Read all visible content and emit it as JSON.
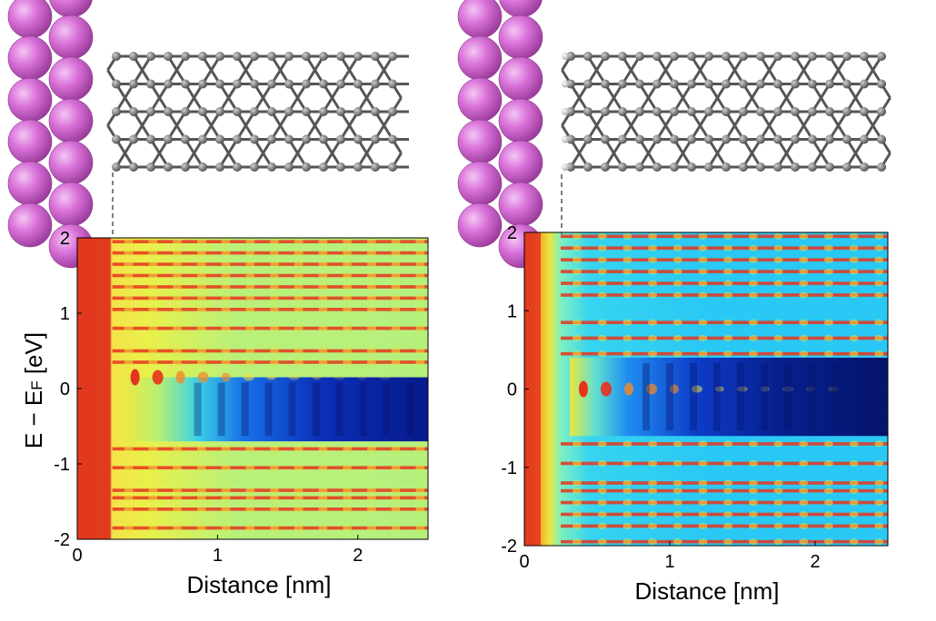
{
  "chart_data": [
    {
      "type": "heatmap",
      "panel": "left",
      "xlabel": "Distance [nm]",
      "ylabel": "E − E",
      "ylabel_sub": "F",
      "ylabel_unit": " [eV]",
      "xlim": [
        0,
        2.5
      ],
      "ylim": [
        -2,
        2
      ],
      "x_ticks": [
        0,
        1,
        2
      ],
      "y_ticks": [
        -2,
        -1,
        0,
        1,
        2
      ],
      "x_tick_labels": [
        "0",
        "1",
        "2"
      ],
      "y_tick_labels": [
        "-2",
        "-1",
        "0",
        "1",
        "2"
      ],
      "interface_x": 0.25,
      "gap_range": [
        -0.7,
        0.15
      ],
      "bands": [
        -1.85,
        -1.6,
        -1.45,
        -1.35,
        -1.05,
        -0.8,
        0.35,
        0.5,
        0.8,
        1.05,
        1.2,
        1.35,
        1.5,
        1.65,
        1.8,
        1.95
      ],
      "gap_state_energy": 0.15,
      "top_structure": "metal slab + carbon nanotube (no H termination)"
    },
    {
      "type": "heatmap",
      "panel": "right",
      "xlabel": "Distance [nm]",
      "ylabel": "",
      "xlim": [
        0,
        2.5
      ],
      "ylim": [
        -2,
        2
      ],
      "x_ticks": [
        0,
        1,
        2
      ],
      "y_ticks": [
        -2,
        -1,
        0,
        1,
        2
      ],
      "x_tick_labels": [
        "0",
        "1",
        "2"
      ],
      "y_tick_labels": [
        "-2",
        "-1",
        "0",
        "1",
        "2"
      ],
      "interface_x": 0.25,
      "gap_range": [
        -0.6,
        0.4
      ],
      "bands": [
        -1.95,
        -1.75,
        -1.6,
        -1.45,
        -1.3,
        -1.2,
        -0.95,
        -0.7,
        0.45,
        0.65,
        0.85,
        1.2,
        1.35,
        1.5,
        1.65,
        1.8,
        1.95
      ],
      "gap_state_energy": 0.0,
      "top_structure": "metal slab + H-terminated carbon nanotube"
    }
  ],
  "colors": {
    "metal_atom": "#d66bd6",
    "carbon_atom": "#6e6e6e",
    "hydrogen_atom": "#e8e8e8",
    "high": "#d11f1f",
    "low": "#0a1a6e"
  }
}
